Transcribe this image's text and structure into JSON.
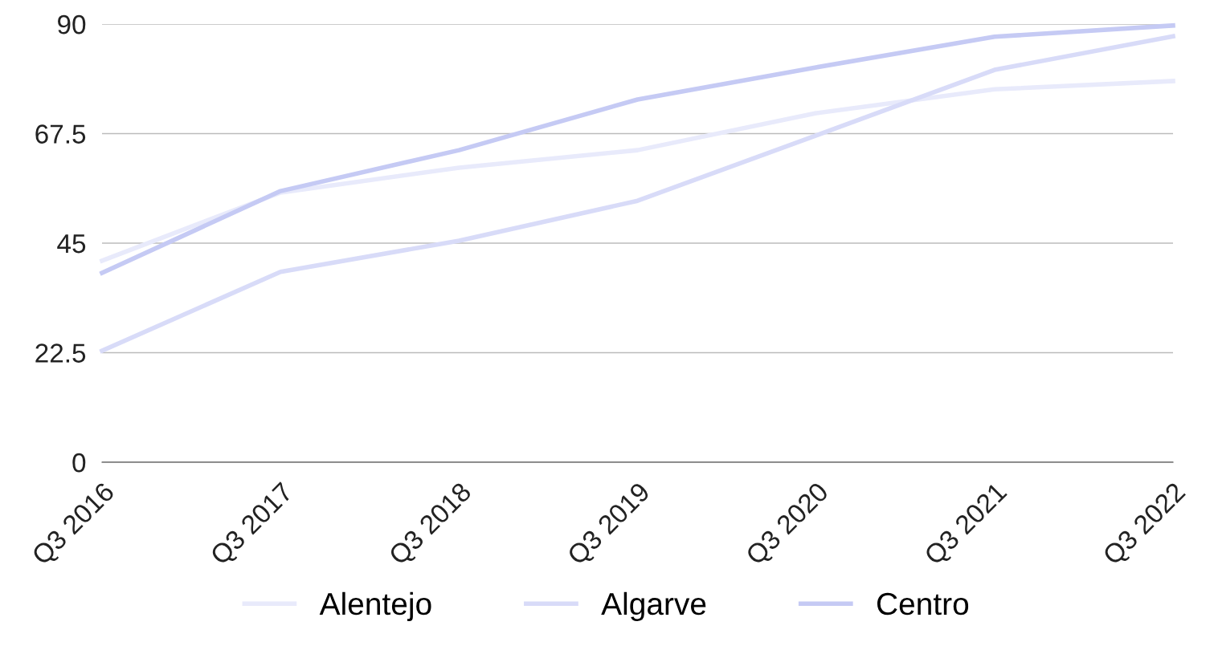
{
  "chart_data": {
    "type": "line",
    "categories": [
      "Q3 2016",
      "Q3 2017",
      "Q3 2018",
      "Q3 2019",
      "Q3 2020",
      "Q3 2021",
      "Q3 2022"
    ],
    "series": [
      {
        "name": "Alentejo",
        "color": "#e8eafb",
        "values": [
          41.4,
          55.4,
          60.5,
          64.1,
          71.7,
          76.6,
          78.3
        ]
      },
      {
        "name": "Algarve",
        "color": "#d8dbf8",
        "values": [
          22.9,
          39.1,
          45.5,
          53.7,
          67.1,
          80.6,
          87.5
        ]
      },
      {
        "name": "Centro",
        "color": "#c5caf4",
        "values": [
          38.9,
          55.7,
          64.1,
          74.5,
          81.1,
          87.4,
          89.7
        ]
      }
    ],
    "ylim": [
      0,
      90
    ],
    "yticks": [
      0,
      22.5,
      45,
      67.5,
      90
    ],
    "grid": "y",
    "legend": "bottom",
    "marker": "none",
    "line_style": "solid"
  }
}
